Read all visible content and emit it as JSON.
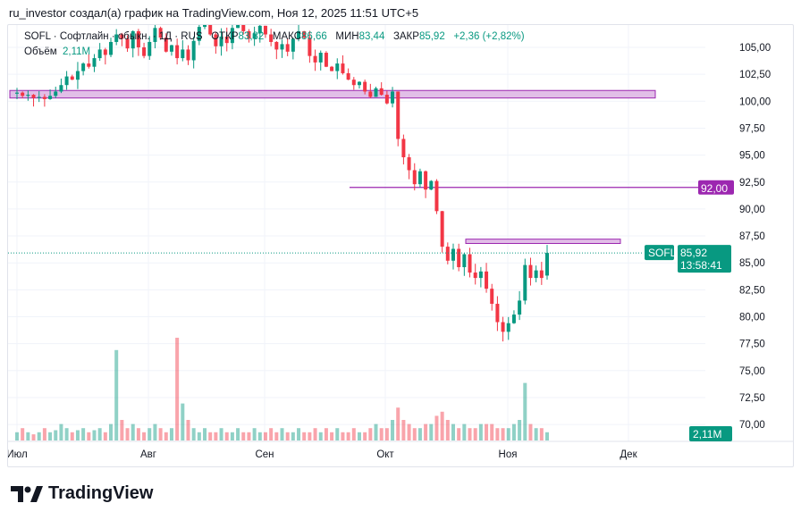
{
  "header": "ru_investor создал(а) график на TradingView.com, Ноя 12, 2025 11:51 UTC+5",
  "legend": {
    "symbol": "SOFL · Софтлайн · обыкн. · 1Д · RUS",
    "open_label": "ОТКР",
    "open": "83,82",
    "high_label": "МАКС",
    "high": "86,66",
    "low_label": "МИН",
    "low": "83,44",
    "close_label": "ЗАКР",
    "close": "85,92",
    "change": "+2,36 (+2,82%)",
    "volume_label": "Объём",
    "volume": "2,11M"
  },
  "price_labels": {
    "level": "92,00",
    "symbol": "SOFL",
    "last": "85,92",
    "countdown": "13:58:41",
    "volume": "2,11M"
  },
  "brand": "TradingView",
  "colors": {
    "up": "#089981",
    "down": "#f23645",
    "level": "#9c27b0",
    "zone": "#e1bee7"
  },
  "chart_data": {
    "type": "candlestick",
    "y_ticks": [
      "105,00",
      "102,50",
      "100,00",
      "97,50",
      "95,00",
      "92,50",
      "90,00",
      "87,50",
      "85,00",
      "82,50",
      "80,00",
      "77,50",
      "75,00",
      "72,50",
      "70,00"
    ],
    "x_ticks": [
      "Июл",
      "Авг",
      "Сен",
      "Окт",
      "Ноя",
      "Дек"
    ],
    "ylim": [
      70,
      105
    ],
    "closes": [
      100.8,
      100.5,
      100.6,
      100.3,
      100.4,
      100.2,
      100.5,
      100.9,
      101.5,
      102.3,
      102.0,
      102.8,
      103.5,
      103.2,
      104.0,
      104.8,
      104.3,
      105.5,
      106.2,
      105.8,
      104.9,
      106.5,
      105.0,
      104.2,
      105.5,
      106.8,
      105.9,
      104.6,
      105.2,
      104.0,
      104.8,
      103.8,
      105.6,
      106.9,
      107.5,
      106.2,
      105.1,
      106.0,
      105.4,
      106.8,
      107.2,
      106.5,
      105.8,
      106.3,
      107.0,
      106.2,
      105.5,
      104.8,
      105.3,
      104.6,
      105.8,
      106.5,
      105.9,
      104.2,
      103.6,
      104.5,
      103.2,
      102.8,
      103.5,
      102.6,
      102.0,
      101.5,
      101.8,
      100.9,
      100.4,
      101.2,
      100.6,
      99.8,
      100.9,
      96.5,
      94.8,
      93.6,
      92.3,
      93.5,
      91.8,
      92.6,
      89.8,
      86.5,
      85.2,
      86.3,
      84.6,
      85.8,
      84.1,
      83.6,
      84.2,
      82.6,
      81.2,
      79.5,
      78.6,
      79.4,
      80.2,
      81.5,
      84.8,
      83.6,
      84.3,
      83.6,
      85.92
    ],
    "last_ohlc": {
      "open": 83.82,
      "high": 86.66,
      "low": 83.44,
      "close": 85.92
    },
    "volumes": [
      2,
      3,
      2,
      1.5,
      2,
      3,
      2,
      2.5,
      4,
      3,
      2,
      2.5,
      3,
      2,
      2.5,
      3,
      2,
      4,
      22,
      5,
      3,
      4,
      3,
      2,
      3,
      4,
      3,
      2,
      3,
      25,
      9,
      5,
      3,
      2,
      3,
      2,
      2,
      3,
      2,
      2,
      3,
      2,
      2,
      3,
      2,
      2,
      3,
      2,
      3,
      2,
      2,
      3,
      2,
      2,
      3,
      2,
      3,
      2,
      3,
      2,
      2,
      3,
      2,
      2,
      3,
      4,
      3,
      3,
      5,
      8,
      5,
      4,
      3,
      3,
      4,
      4,
      6,
      7,
      5,
      4,
      3,
      4,
      3,
      3,
      4,
      4,
      4,
      3,
      3,
      3,
      4,
      5,
      14,
      4,
      3,
      3,
      2
    ],
    "levels": [
      {
        "price": 92,
        "label": "92,00"
      }
    ],
    "zones": [
      [
        100.3,
        101.0
      ],
      [
        86.8,
        87.2
      ]
    ]
  }
}
